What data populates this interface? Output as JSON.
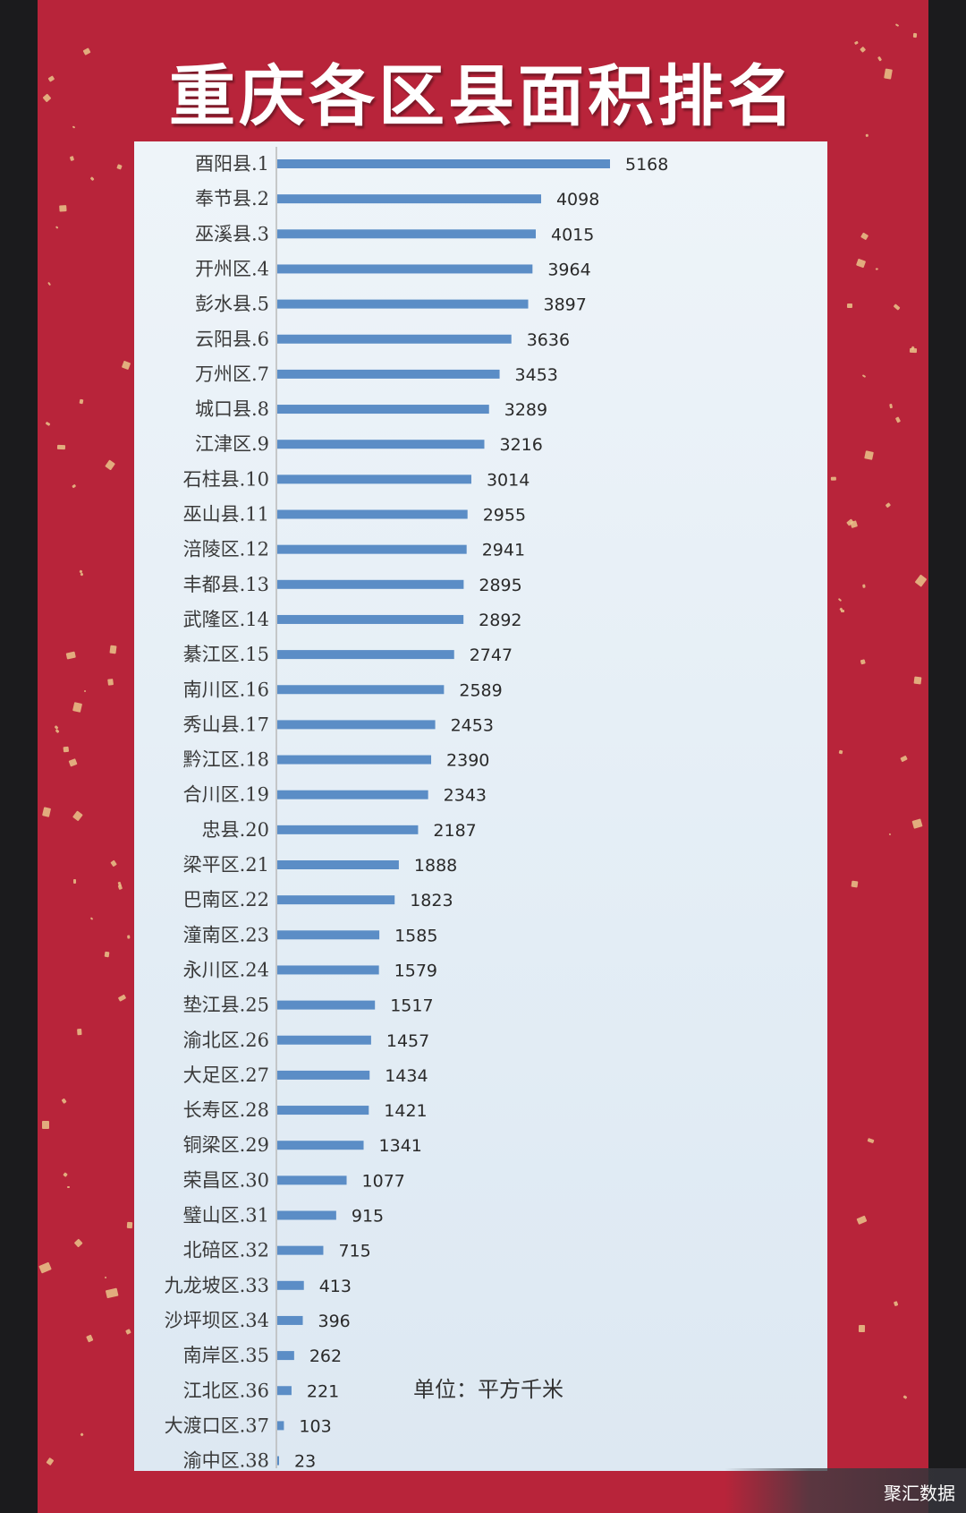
{
  "title": "重庆各区县面积排名",
  "unit_note": "单位：平方千米",
  "watermark": "聚汇数据",
  "colors": {
    "background": "#b8243a",
    "bar": "#5b8dc6",
    "panel": "#e6eef6"
  },
  "chart_data": {
    "type": "bar",
    "orientation": "horizontal",
    "title": "重庆各区县面积排名",
    "categories": [
      "酉阳县.1",
      "奉节县.2",
      "巫溪县.3",
      "开州区.4",
      "彭水县.5",
      "云阳县.6",
      "万州区.7",
      "城口县.8",
      "江津区.9",
      "石柱县.10",
      "巫山县.11",
      "涪陵区.12",
      "丰都县.13",
      "武隆区.14",
      "綦江区.15",
      "南川区.16",
      "秀山县.17",
      "黔江区.18",
      "合川区.19",
      "忠县.20",
      "梁平区.21",
      "巴南区.22",
      "潼南区.23",
      "永川区.24",
      "垫江县.25",
      "渝北区.26",
      "大足区.27",
      "长寿区.28",
      "铜梁区.29",
      "荣昌区.30",
      "璧山区.31",
      "北碚区.32",
      "九龙坡区.33",
      "沙坪坝区.34",
      "南岸区.35",
      "江北区.36",
      "大渡口区.37",
      "渝中区.38"
    ],
    "values": [
      5168,
      4098,
      4015,
      3964,
      3897,
      3636,
      3453,
      3289,
      3216,
      3014,
      2955,
      2941,
      2895,
      2892,
      2747,
      2589,
      2453,
      2390,
      2343,
      2187,
      1888,
      1823,
      1585,
      1579,
      1517,
      1457,
      1434,
      1421,
      1341,
      1077,
      915,
      715,
      413,
      396,
      262,
      221,
      103,
      23
    ],
    "value_labels": [
      "5168",
      "4098",
      "4015",
      "3964",
      "3897",
      "3636",
      "3453",
      "3289",
      "3216",
      "3014",
      "2955",
      "2941",
      "2895",
      "2892",
      "2747",
      "2589",
      "2453",
      "2390",
      "2343",
      "2187",
      "1888",
      "1823",
      "1585",
      "1579",
      "1517",
      "1457",
      "1434",
      "1421",
      "1341",
      "1077",
      "915",
      "715",
      "413",
      "396",
      "262",
      "221",
      "103",
      "23"
    ],
    "xlim": [
      0,
      5168
    ],
    "grid": false,
    "legend": "none"
  }
}
